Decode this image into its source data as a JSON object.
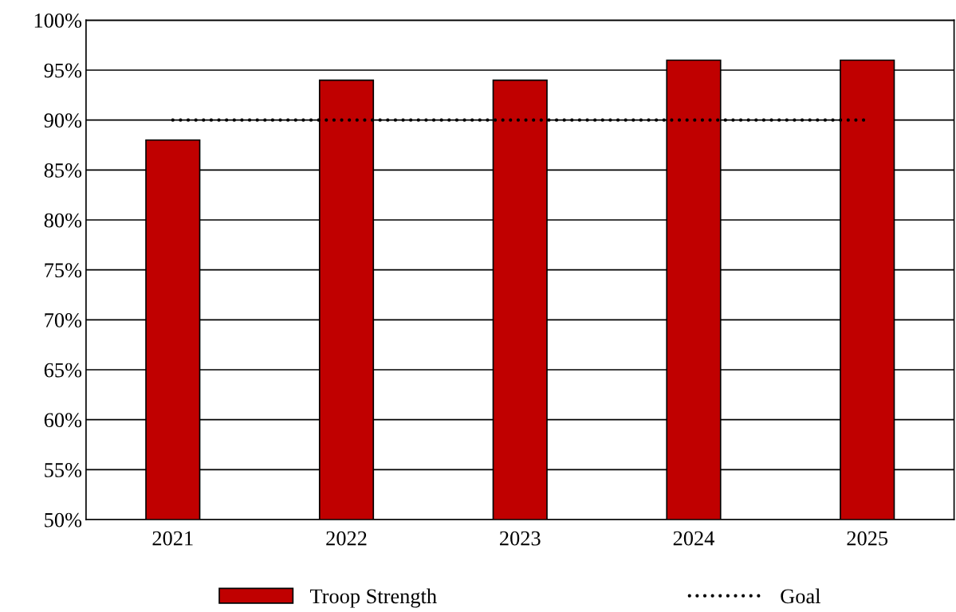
{
  "chart_data": {
    "type": "bar",
    "categories": [
      "2021",
      "2022",
      "2023",
      "2024",
      "2025"
    ],
    "series": [
      {
        "name": "Troop Strength",
        "color": "#c00000",
        "values": [
          88,
          94,
          94,
          96,
          96
        ]
      },
      {
        "name": "Goal",
        "type": "line",
        "color": "#000000",
        "line_style": "dotted",
        "values": [
          90,
          90,
          90,
          90,
          90
        ]
      }
    ],
    "ylim": [
      50,
      100
    ],
    "yticks": [
      {
        "value": 50,
        "label": "50%"
      },
      {
        "value": 55,
        "label": "55%"
      },
      {
        "value": 60,
        "label": "60%"
      },
      {
        "value": 65,
        "label": "65%"
      },
      {
        "value": 70,
        "label": "70%"
      },
      {
        "value": 75,
        "label": "75%"
      },
      {
        "value": 80,
        "label": "80%"
      },
      {
        "value": 85,
        "label": "85%"
      },
      {
        "value": 90,
        "label": "90%"
      },
      {
        "value": 95,
        "label": "95%"
      },
      {
        "value": 100,
        "label": "100%"
      }
    ],
    "grid": "y",
    "legend": "bottom"
  }
}
